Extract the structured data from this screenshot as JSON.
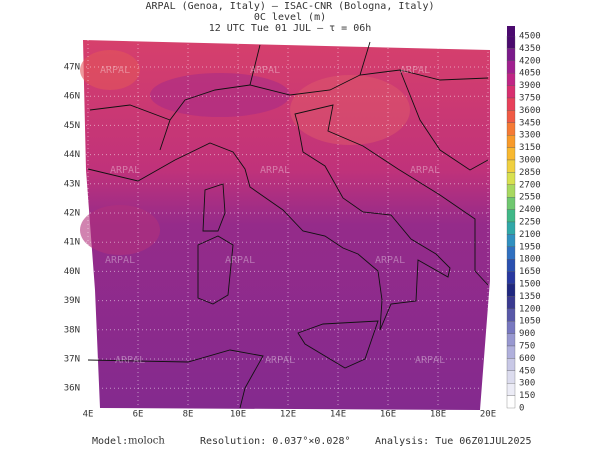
{
  "header": {
    "line1": "ARPAL (Genoa, Italy)  –  ISAC-CNR (Bologna, Italy)",
    "line2": "0C level (m)",
    "line3": "12 UTC Tue 01 JUL  –  τ = 06h"
  },
  "map": {
    "lat_labels": [
      "47N",
      "46N",
      "45N",
      "44N",
      "43N",
      "42N",
      "41N",
      "40N",
      "39N",
      "38N",
      "37N",
      "36N"
    ],
    "lon_labels": [
      "4E",
      "6E",
      "8E",
      "10E",
      "12E",
      "14E",
      "16E",
      "18E",
      "20E"
    ],
    "watermark": "ARPAL"
  },
  "colorbar": {
    "labels": [
      4500,
      4350,
      4200,
      4050,
      3900,
      3750,
      3600,
      3450,
      3300,
      3150,
      3000,
      2850,
      2700,
      2550,
      2400,
      2250,
      2100,
      1950,
      1800,
      1650,
      1500,
      1350,
      1200,
      1050,
      900,
      750,
      600,
      450,
      300,
      150,
      0
    ],
    "colors": [
      "#4b0a6e",
      "#7a1a8a",
      "#a0208f",
      "#c02585",
      "#d82f6f",
      "#e8405a",
      "#f05a45",
      "#f57a35",
      "#f89a2a",
      "#f8b830",
      "#f0d040",
      "#d8e050",
      "#a8d860",
      "#70c870",
      "#40b888",
      "#30a8a8",
      "#3090c0",
      "#3070c0",
      "#2a50b0",
      "#2838a0",
      "#202880",
      "#3a3a90",
      "#5858a8",
      "#7878c0",
      "#9898d0",
      "#b0b0dc",
      "#c8c8e6",
      "#dcdcee",
      "#ececf6",
      "#ffffff"
    ]
  },
  "footer": {
    "model_label": "Model:",
    "model": "moloch",
    "resolution": "Resolution: 0.037°×0.028°",
    "analysis": "Analysis: Tue 06Z01JUL2025"
  }
}
